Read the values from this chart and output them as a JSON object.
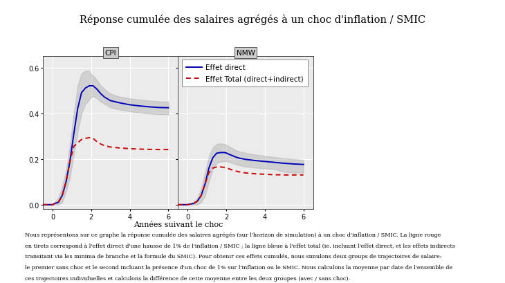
{
  "title": "Réponse cumulée des salaires agrégés à un choc d'inflation / SMIC",
  "xlabel": "Années suivant le choc",
  "panel_labels": [
    "CPI",
    "NMW"
  ],
  "legend_entries": [
    "Effet direct",
    "Effet Total (direct+indirect)"
  ],
  "ylim": [
    -0.02,
    0.65
  ],
  "yticks": [
    0.0,
    0.2,
    0.4,
    0.6
  ],
  "xticks": [
    0,
    2,
    4,
    6
  ],
  "background_color": "#ffffff",
  "panel_bg": "#ebebeb",
  "grid_color": "#ffffff",
  "blue_color": "#0000bb",
  "red_color": "#cc0000",
  "shade_color": "#b0b0b0",
  "cpi_x": [
    -0.5,
    0.0,
    0.05,
    0.1,
    0.3,
    0.5,
    0.7,
    0.9,
    1.1,
    1.3,
    1.5,
    1.7,
    1.9,
    2.0,
    2.1,
    2.3,
    2.5,
    2.7,
    2.9,
    3.0,
    3.5,
    4.0,
    4.5,
    5.0,
    5.5,
    6.0
  ],
  "cpi_blue": [
    0.0,
    0.0,
    0.002,
    0.005,
    0.01,
    0.04,
    0.1,
    0.19,
    0.31,
    0.42,
    0.49,
    0.51,
    0.52,
    0.52,
    0.52,
    0.505,
    0.485,
    0.47,
    0.46,
    0.455,
    0.445,
    0.437,
    0.432,
    0.428,
    0.425,
    0.424
  ],
  "cpi_blue_up": [
    0.0,
    0.0,
    0.005,
    0.01,
    0.03,
    0.08,
    0.15,
    0.26,
    0.4,
    0.52,
    0.575,
    0.585,
    0.585,
    0.57,
    0.565,
    0.545,
    0.52,
    0.505,
    0.49,
    0.485,
    0.472,
    0.465,
    0.459,
    0.455,
    0.452,
    0.45
  ],
  "cpi_blue_lo": [
    0.0,
    0.0,
    0.0,
    0.0,
    0.0,
    0.01,
    0.06,
    0.12,
    0.22,
    0.32,
    0.4,
    0.44,
    0.46,
    0.47,
    0.475,
    0.465,
    0.45,
    0.44,
    0.43,
    0.425,
    0.415,
    0.408,
    0.403,
    0.398,
    0.395,
    0.394
  ],
  "cpi_red": [
    0.0,
    0.0,
    0.002,
    0.005,
    0.01,
    0.04,
    0.1,
    0.19,
    0.255,
    0.27,
    0.285,
    0.29,
    0.293,
    0.293,
    0.29,
    0.275,
    0.265,
    0.258,
    0.254,
    0.252,
    0.248,
    0.245,
    0.243,
    0.242,
    0.241,
    0.241
  ],
  "nmw_x": [
    -0.5,
    0.0,
    0.05,
    0.1,
    0.3,
    0.5,
    0.7,
    0.9,
    1.1,
    1.3,
    1.5,
    1.7,
    1.9,
    2.0,
    2.1,
    2.3,
    2.5,
    2.7,
    2.9,
    3.0,
    3.5,
    4.0,
    4.5,
    5.0,
    5.5,
    6.0
  ],
  "nmw_blue": [
    0.0,
    0.0,
    0.001,
    0.002,
    0.005,
    0.015,
    0.04,
    0.09,
    0.16,
    0.205,
    0.225,
    0.228,
    0.228,
    0.226,
    0.222,
    0.215,
    0.208,
    0.203,
    0.2,
    0.198,
    0.193,
    0.189,
    0.185,
    0.181,
    0.178,
    0.176
  ],
  "nmw_blue_up": [
    0.0,
    0.0,
    0.003,
    0.005,
    0.01,
    0.03,
    0.07,
    0.14,
    0.21,
    0.25,
    0.265,
    0.268,
    0.265,
    0.262,
    0.257,
    0.248,
    0.238,
    0.232,
    0.228,
    0.226,
    0.219,
    0.213,
    0.208,
    0.203,
    0.199,
    0.196
  ],
  "nmw_blue_lo": [
    0.0,
    0.0,
    0.0,
    0.0,
    0.0,
    0.0,
    0.01,
    0.04,
    0.1,
    0.155,
    0.183,
    0.188,
    0.19,
    0.19,
    0.188,
    0.182,
    0.176,
    0.172,
    0.168,
    0.166,
    0.162,
    0.158,
    0.155,
    0.143,
    0.14,
    0.14
  ],
  "nmw_red": [
    0.0,
    0.0,
    0.001,
    0.002,
    0.005,
    0.015,
    0.04,
    0.09,
    0.14,
    0.16,
    0.165,
    0.165,
    0.163,
    0.161,
    0.158,
    0.152,
    0.147,
    0.143,
    0.14,
    0.139,
    0.135,
    0.133,
    0.131,
    0.13,
    0.13,
    0.13
  ],
  "footnote_line1": "Nous représentons sur ce graphe la réponse cumulée des salaires agrégés (sur l'horizon de simulation) à un choc d'inflation / SMIC. La ligne rouge",
  "footnote_line2": "en tirets correspond à l'effet direct d'une hausse de 1% de l'inflation / SMIC ; la ligne bleue à l'effet total (ie. incluant l'effet direct, et les effets indirects",
  "footnote_line3": "transitant via les minima de branche et la formule du SMIC). Pour obtenir ces effets cumulés, nous simulons deux groups de trajectoires de salaire:",
  "footnote_line4": "le premier sans choc et le second incluant la présence d'un choc de 1% sur l'inflation ou le SMIC. Nous calculons la moyenne par date de l'ensemble de",
  "footnote_line5": "ces trajectoires individuelles et calculons la différence de cette moyenne entre les deux groupes (avec / sans choc)."
}
